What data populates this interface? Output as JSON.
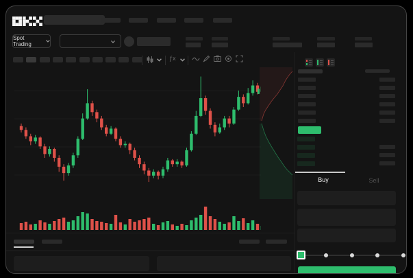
{
  "app": {
    "logo_text": "OKX",
    "window_title": ""
  },
  "colors": {
    "green": "#2ebd6d",
    "red": "#de5149",
    "window_bg": "#141414",
    "placeholder": "#2a2a2a",
    "panel": "#1e1e1e",
    "highlight_line": "#c9c9c9"
  },
  "topnav": {
    "nav_item_count": 5
  },
  "market_bar": {
    "pair_selector_label": "Spot Trading",
    "stat_group_count": 5
  },
  "toolbar": {
    "timeframe_pill_count": 10
  },
  "orderbook": {
    "view_modes": [
      "both",
      "bids-only",
      "asks-only"
    ],
    "ask_row_count": 6,
    "bid_row_count": 4,
    "buy_label": "Buy",
    "sell_label": "Sell",
    "slider_stop_count": 5,
    "slider_value_index": 0
  },
  "bottom_tabs": {
    "left_tab_count": 2,
    "right_item_count": 2,
    "active_tab_index": 0
  },
  "chart_data": {
    "type": "candlestick",
    "title": "",
    "xlabel": "",
    "ylabel": "",
    "price_range": [
      0,
      100
    ],
    "grid": "horizontal",
    "up_color": "#2ebd6d",
    "down_color": "#de5149",
    "candles_ohlc_format": "open,close,high,low (relative 0-100 scale)",
    "candles": [
      [
        58,
        55,
        60,
        53
      ],
      [
        55,
        50,
        57,
        48
      ],
      [
        50,
        46,
        52,
        43
      ],
      [
        46,
        49,
        51,
        44
      ],
      [
        49,
        42,
        50,
        40
      ],
      [
        42,
        36,
        44,
        33
      ],
      [
        36,
        40,
        42,
        34
      ],
      [
        40,
        33,
        41,
        30
      ],
      [
        33,
        26,
        35,
        22
      ],
      [
        26,
        21,
        28,
        15
      ],
      [
        21,
        27,
        29,
        19
      ],
      [
        27,
        35,
        37,
        25
      ],
      [
        35,
        48,
        50,
        33
      ],
      [
        48,
        64,
        68,
        47
      ],
      [
        64,
        76,
        87,
        63
      ],
      [
        76,
        69,
        78,
        66
      ],
      [
        69,
        64,
        71,
        61
      ],
      [
        64,
        57,
        66,
        55
      ],
      [
        57,
        52,
        59,
        50
      ],
      [
        52,
        56,
        58,
        51
      ],
      [
        56,
        48,
        57,
        46
      ],
      [
        48,
        43,
        50,
        41
      ],
      [
        43,
        44,
        46,
        41
      ],
      [
        44,
        39,
        45,
        36
      ],
      [
        39,
        33,
        41,
        31
      ],
      [
        33,
        28,
        35,
        25
      ],
      [
        28,
        23,
        30,
        20
      ],
      [
        23,
        19,
        25,
        14
      ],
      [
        19,
        22,
        24,
        17
      ],
      [
        22,
        19,
        23,
        16
      ],
      [
        19,
        24,
        26,
        17
      ],
      [
        24,
        31,
        33,
        22
      ],
      [
        31,
        28,
        32,
        26
      ],
      [
        28,
        30,
        32,
        26
      ],
      [
        30,
        27,
        31,
        25
      ],
      [
        27,
        39,
        41,
        26
      ],
      [
        39,
        52,
        54,
        38
      ],
      [
        52,
        66,
        70,
        51
      ],
      [
        66,
        80,
        97,
        65
      ],
      [
        80,
        70,
        82,
        67
      ],
      [
        70,
        59,
        72,
        56
      ],
      [
        59,
        53,
        61,
        50
      ],
      [
        53,
        57,
        60,
        52
      ],
      [
        57,
        64,
        66,
        55
      ],
      [
        64,
        60,
        66,
        57
      ],
      [
        60,
        71,
        73,
        59
      ],
      [
        71,
        81,
        86,
        70
      ],
      [
        81,
        76,
        83,
        73
      ],
      [
        76,
        84,
        88,
        75
      ],
      [
        84,
        90,
        94,
        82
      ],
      [
        90,
        85,
        92,
        83
      ],
      [
        85,
        89,
        91,
        82
      ]
    ],
    "volumes": [
      10,
      12,
      8,
      9,
      14,
      11,
      9,
      13,
      16,
      18,
      12,
      14,
      20,
      26,
      24,
      16,
      13,
      12,
      10,
      9,
      22,
      11,
      8,
      16,
      12,
      14,
      16,
      18,
      9,
      7,
      11,
      13,
      8,
      6,
      9,
      7,
      14,
      18,
      22,
      34,
      20,
      16,
      12,
      9,
      11,
      20,
      13,
      17,
      10,
      14,
      9,
      6
    ],
    "depth": {
      "orientation": "vertical",
      "asks_curve": [
        [
          3,
          78
        ],
        [
          6,
          68
        ],
        [
          9,
          62
        ],
        [
          13,
          56
        ],
        [
          17,
          50
        ],
        [
          21,
          45
        ],
        [
          26,
          39
        ],
        [
          30,
          33
        ],
        [
          34,
          27
        ],
        [
          38,
          19
        ],
        [
          42,
          13
        ],
        [
          45,
          9
        ],
        [
          48,
          6
        ]
      ],
      "bids_curve": [
        [
          3,
          82
        ],
        [
          6,
          92
        ],
        [
          9,
          100
        ],
        [
          13,
          108
        ],
        [
          17,
          115
        ],
        [
          22,
          123
        ],
        [
          27,
          131
        ],
        [
          32,
          138
        ],
        [
          36,
          144
        ],
        [
          40,
          149
        ],
        [
          44,
          153
        ],
        [
          48,
          157
        ]
      ]
    }
  }
}
